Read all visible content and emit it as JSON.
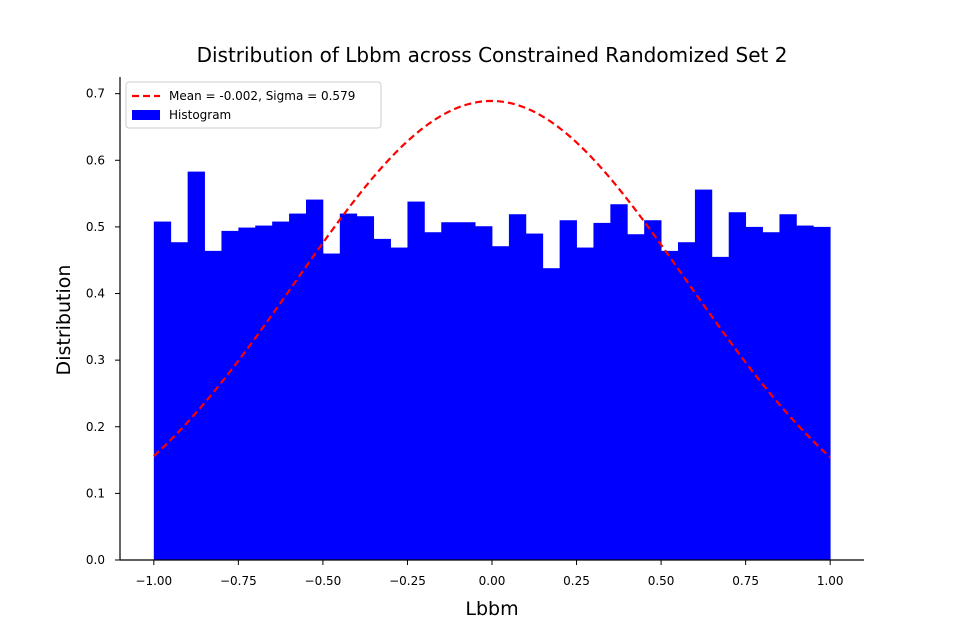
{
  "chart_data": {
    "type": "bar",
    "title": "Distribution of Lbbm across Constrained Randomized Set 2",
    "xlabel": "Lbbm",
    "ylabel": "Distribution",
    "xlim": [
      -1.1,
      1.1
    ],
    "ylim": [
      0.0,
      0.725
    ],
    "xticks": [
      -1.0,
      -0.75,
      -0.5,
      -0.25,
      0.0,
      0.25,
      0.5,
      0.75,
      1.0
    ],
    "xtick_labels": [
      "−1.00",
      "−0.75",
      "−0.50",
      "−0.25",
      "0.00",
      "0.25",
      "0.50",
      "0.75",
      "1.00"
    ],
    "yticks": [
      0.0,
      0.1,
      0.2,
      0.3,
      0.4,
      0.5,
      0.6,
      0.7
    ],
    "ytick_labels": [
      "0.0",
      "0.1",
      "0.2",
      "0.3",
      "0.4",
      "0.5",
      "0.6",
      "0.7"
    ],
    "grid": false,
    "legend_position": "top-left",
    "histogram": {
      "name": "Histogram",
      "color": "#0000ff",
      "bin_start": -1.0,
      "bin_end": 1.0,
      "values": [
        0.508,
        0.477,
        0.583,
        0.464,
        0.494,
        0.499,
        0.502,
        0.508,
        0.52,
        0.541,
        0.46,
        0.52,
        0.516,
        0.482,
        0.469,
        0.538,
        0.492,
        0.507,
        0.507,
        0.501,
        0.471,
        0.519,
        0.49,
        0.438,
        0.51,
        0.469,
        0.506,
        0.534,
        0.489,
        0.51,
        0.464,
        0.477,
        0.556,
        0.455,
        0.522,
        0.5,
        0.492,
        0.519,
        0.502,
        0.5
      ]
    },
    "fit": {
      "name": "Mean = -0.002, Sigma = 0.579",
      "mean": -0.002,
      "sigma": 0.579,
      "color": "#ff0000",
      "style": "dashed",
      "x_range": [
        -1.0,
        1.0
      ]
    }
  }
}
